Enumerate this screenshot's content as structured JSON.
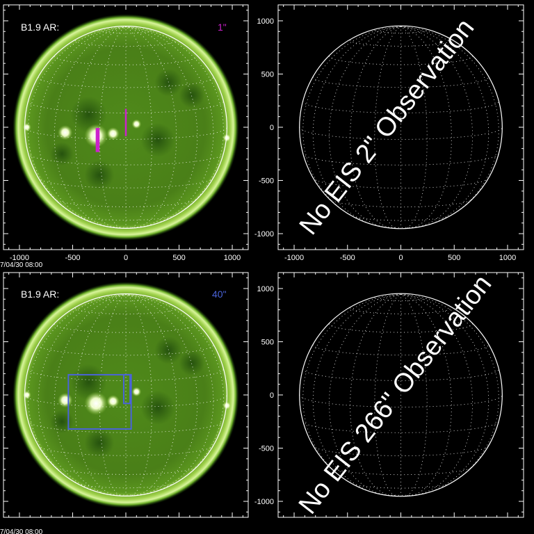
{
  "panels": [
    {
      "id": "top-left",
      "kind": "sun",
      "label": "B1.9 AR:",
      "scale_label": "1\"",
      "scale_color": "#cc22cc",
      "timestamp": "7/04/30 08:00",
      "x_ticks": [
        -1000,
        -500,
        0,
        500,
        1000
      ],
      "y_ticks": [],
      "overlay_boxes": [
        {
          "name": "eis-slit-1",
          "x0": -280,
          "x1": -250,
          "y0": -230,
          "y1": -10,
          "color": "#cc22cc",
          "fill": true
        },
        {
          "name": "eis-slit-2",
          "x0": -5,
          "x1": 5,
          "y0": -80,
          "y1": 170,
          "color": "#cc22cc",
          "fill": true
        }
      ]
    },
    {
      "id": "top-right",
      "kind": "empty",
      "message": "No EIS 2\" Observation",
      "x_ticks": [
        -1000,
        -500,
        0,
        500,
        1000
      ],
      "y_ticks": [
        -1000,
        -500,
        0,
        500,
        1000
      ]
    },
    {
      "id": "bottom-left",
      "kind": "sun",
      "label": "B1.9 AR:",
      "scale_label": "40\"",
      "scale_color": "#4a63d9",
      "timestamp": "7/04/30 08:00",
      "x_ticks": [],
      "y_ticks": [],
      "overlay_boxes": [
        {
          "name": "eis-raster-box",
          "x0": -540,
          "x1": 50,
          "y0": -320,
          "y1": 190,
          "color": "#4a63d9",
          "fill": false
        },
        {
          "name": "eis-slot-box",
          "x0": -20,
          "x1": 40,
          "y0": -80,
          "y1": 190,
          "color": "#4a63d9",
          "fill": false
        }
      ]
    },
    {
      "id": "bottom-right",
      "kind": "empty",
      "message": "No EIS 266\" Observation",
      "x_ticks": [],
      "y_ticks": [
        -1000,
        -500,
        0,
        500,
        1000
      ]
    }
  ],
  "chart_data": [
    {
      "type": "scatter",
      "title": "",
      "label": "B1.9 AR:",
      "scale": "1\"",
      "xlim": [
        -1150,
        1150
      ],
      "ylim": [
        -1150,
        1150
      ],
      "solar_radius_arcsec": 950,
      "grid": true
    },
    {
      "type": "scatter",
      "title": "",
      "annotation": "No EIS 2\" Observation",
      "xlim": [
        -1150,
        1150
      ],
      "ylim": [
        -1150,
        1150
      ],
      "solar_radius_arcsec": 950,
      "grid": true
    },
    {
      "type": "scatter",
      "title": "",
      "label": "B1.9 AR:",
      "scale": "40\"",
      "xlim": [
        -1150,
        1150
      ],
      "ylim": [
        -1150,
        1150
      ],
      "solar_radius_arcsec": 950,
      "grid": true
    },
    {
      "type": "scatter",
      "title": "",
      "annotation": "No EIS 266\" Observation",
      "xlim": [
        -1150,
        1150
      ],
      "ylim": [
        -1150,
        1150
      ],
      "solar_radius_arcsec": 950,
      "grid": true
    }
  ]
}
